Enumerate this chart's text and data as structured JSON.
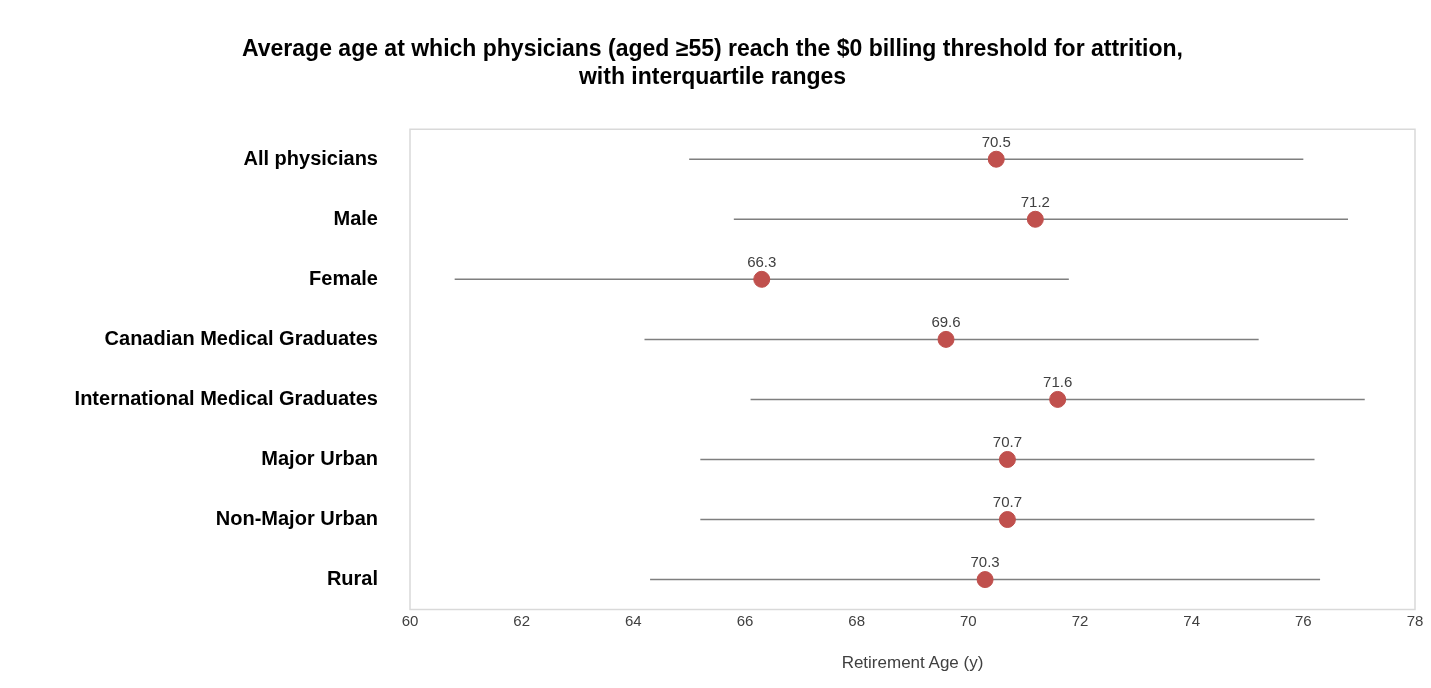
{
  "chart_data": {
    "type": "scatter",
    "orientation": "horizontal",
    "title": "Average age at which physicians (aged ≥55) reach the $0 billing threshold for attrition, with interquartile ranges",
    "xlabel": "Retirement Age (y)",
    "categories": [
      "All physicians",
      "Male",
      "Female",
      "Canadian Medical Graduates",
      "International Medical Graduates",
      "Major Urban",
      "Non-Major Urban",
      "Rural"
    ],
    "values": [
      70.5,
      71.2,
      66.3,
      69.6,
      71.6,
      70.7,
      70.7,
      70.3
    ],
    "errors": [
      [
        65.0,
        76.0
      ],
      [
        65.8,
        76.8
      ],
      [
        60.8,
        71.8
      ],
      [
        64.2,
        75.2
      ],
      [
        66.1,
        77.1
      ],
      [
        65.2,
        76.2
      ],
      [
        65.2,
        76.2
      ],
      [
        64.3,
        76.3
      ]
    ],
    "color": "#c0504d",
    "marker": "circle",
    "data_labels": true,
    "xlim": [
      60,
      78
    ],
    "xticks": [
      60,
      62,
      64,
      66,
      68,
      70,
      72,
      74,
      76,
      78
    ],
    "legend": false
  }
}
